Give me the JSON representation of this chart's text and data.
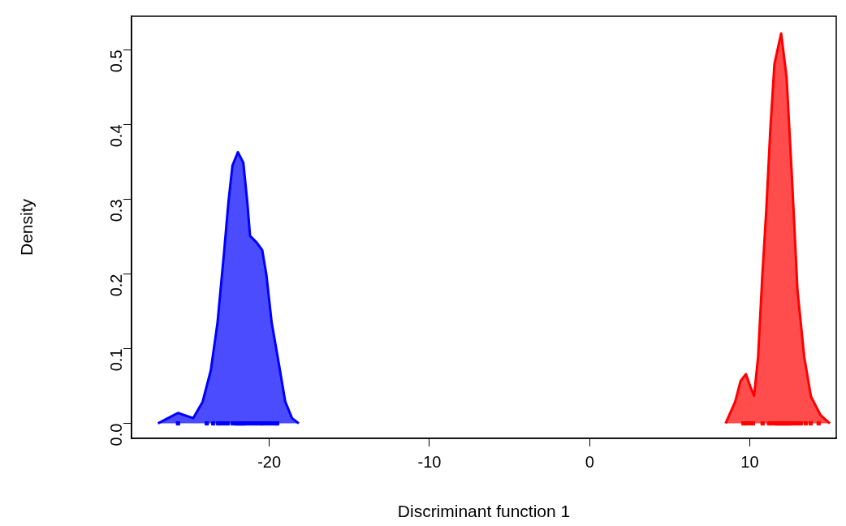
{
  "chart_data": {
    "type": "area",
    "xlabel": "Discriminant function 1",
    "ylabel": "Density",
    "xlim": [
      -28.6,
      15.4
    ],
    "xticks": [
      -20,
      -10,
      0,
      10
    ],
    "ylim": [
      -0.02,
      0.545
    ],
    "yticks": [
      {
        "value": 0,
        "label": "0.0"
      },
      0.1,
      0.2,
      0.3,
      0.4,
      0.5
    ],
    "grid": false,
    "legend": false,
    "series": [
      {
        "color": "#0000ff",
        "x": [
          -26.95,
          -25.7,
          -24.75,
          -24.16,
          -23.65,
          -23.23,
          -22.81,
          -22.55,
          -22.3,
          -21.96,
          -21.62,
          -21.37,
          -21.2,
          -20.78,
          -20.44,
          -20.18,
          -19.85,
          -19.42,
          -19.0,
          -18.58,
          -18.16
        ],
        "values": [
          0,
          0.014,
          0.007,
          0.029,
          0.071,
          0.135,
          0.232,
          0.296,
          0.345,
          0.363,
          0.349,
          0.296,
          0.251,
          0.242,
          0.232,
          0.199,
          0.135,
          0.082,
          0.029,
          0.007,
          0
        ]
      },
      {
        "color": "#ff0000",
        "x": [
          8.49,
          9.09,
          9.43,
          9.76,
          10.02,
          10.27,
          10.52,
          10.78,
          11.03,
          11.28,
          11.54,
          11.96,
          12.3,
          12.64,
          12.98,
          13.4,
          13.82,
          14.42,
          15.0
        ],
        "values": [
          0,
          0.029,
          0.057,
          0.066,
          0.05,
          0.037,
          0.089,
          0.196,
          0.285,
          0.392,
          0.481,
          0.522,
          0.463,
          0.327,
          0.178,
          0.089,
          0.036,
          0.011,
          0
        ]
      },
      {
        "type": "scatter",
        "marker": "square",
        "color": "#0000ff",
        "x": [
          -25.7,
          -23.9,
          -23.5,
          -23.2,
          -23.0,
          -22.8,
          -22.6,
          -22.3,
          -22.1,
          -22.0,
          -21.9,
          -21.8,
          -21.7,
          -21.6,
          -21.5,
          -21.3,
          -21.1,
          -20.9,
          -20.7,
          -20.5,
          -20.4,
          -20.2,
          -20.0,
          -19.8,
          -19.6,
          -19.5
        ],
        "values": [
          0,
          0,
          0,
          0,
          0,
          0,
          0,
          0,
          0,
          0,
          0,
          0,
          0,
          0,
          0,
          0,
          0,
          0,
          0,
          0,
          0,
          0,
          0,
          0,
          0,
          0
        ]
      },
      {
        "type": "scatter",
        "marker": "square",
        "color": "#ff0000",
        "x": [
          9.6,
          9.8,
          10.0,
          10.2,
          10.8,
          11.2,
          11.4,
          11.6,
          11.7,
          11.8,
          11.9,
          12.0,
          12.1,
          12.2,
          12.3,
          12.4,
          12.5,
          12.6,
          12.8,
          13.0,
          13.2,
          13.5,
          13.8,
          14.3
        ],
        "values": [
          0,
          0,
          0,
          0,
          0,
          0,
          0,
          0,
          0,
          0,
          0,
          0,
          0,
          0,
          0,
          0,
          0,
          0,
          0,
          0,
          0,
          0,
          0,
          0
        ]
      }
    ]
  }
}
